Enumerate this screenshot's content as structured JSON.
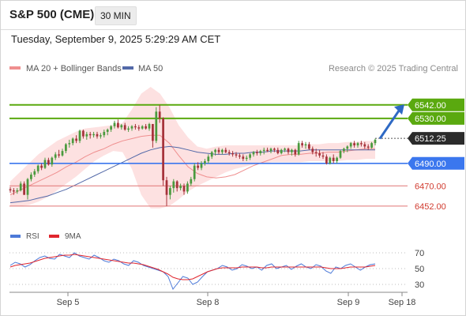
{
  "header": {
    "title": "S&P 500 (CME)",
    "timeframe": "30 MIN"
  },
  "timestamp": "Tuesday, September 9, 2025 5:29:29 AM CET",
  "legend": {
    "ma20_label": "MA 20 + Bollinger Bands",
    "ma50_label": "MA 50",
    "copyright": "Research © 2025 Trading Central"
  },
  "colors": {
    "bull": "#4a9a3e",
    "bear": "#a6323a",
    "ma20": "#ef8f8f",
    "ma50": "#5369a8",
    "band_fill": "#fddcdc",
    "resistance": "#5aa90f",
    "support_blue": "#3b77ee",
    "support_red": "#e07474",
    "rsi": "#4d7ad8",
    "rsi_ma": "#e0262e",
    "arrow": "#2e69c4"
  },
  "chart_data": [
    {
      "type": "candlestick",
      "price_range": [
        6440,
        6565
      ],
      "x_ticks": [
        "Sep 5",
        "Sep 8",
        "Sep 9",
        "Sep 18"
      ],
      "last_price": "6512.25",
      "levels": [
        {
          "value": 6542,
          "label": "6542.00",
          "role": "resistance",
          "style": "box"
        },
        {
          "value": 6530,
          "label": "6530.00",
          "role": "resistance",
          "style": "box"
        },
        {
          "value": 6512.25,
          "label": "6512.25",
          "role": "last",
          "style": "box-dark"
        },
        {
          "value": 6490,
          "label": "6490.00",
          "role": "support-blue",
          "style": "box"
        },
        {
          "value": 6470,
          "label": "6470.00",
          "role": "support-red",
          "style": "text"
        },
        {
          "value": 6452,
          "label": "6452.00",
          "role": "support-red",
          "style": "text"
        }
      ],
      "candles": [
        [
          6467,
          6469,
          6464,
          6466
        ],
        [
          6466,
          6468,
          6462,
          6465
        ],
        [
          6465,
          6468,
          6463,
          6466
        ],
        [
          6466,
          6474,
          6465,
          6472
        ],
        [
          6472,
          6474,
          6462,
          6462
        ],
        [
          6462,
          6477,
          6458,
          6476
        ],
        [
          6476,
          6482,
          6474,
          6480
        ],
        [
          6480,
          6485,
          6478,
          6483
        ],
        [
          6483,
          6489,
          6481,
          6488
        ],
        [
          6488,
          6490,
          6484,
          6486
        ],
        [
          6486,
          6495,
          6485,
          6493
        ],
        [
          6493,
          6495,
          6488,
          6489
        ],
        [
          6489,
          6496,
          6487,
          6495
        ],
        [
          6495,
          6500,
          6493,
          6498
        ],
        [
          6498,
          6502,
          6495,
          6497
        ],
        [
          6497,
          6503,
          6496,
          6501
        ],
        [
          6501,
          6508,
          6499,
          6507
        ],
        [
          6507,
          6511,
          6504,
          6508
        ],
        [
          6508,
          6513,
          6506,
          6512
        ],
        [
          6512,
          6515,
          6508,
          6510
        ],
        [
          6510,
          6520,
          6508,
          6519
        ],
        [
          6519,
          6520,
          6512,
          6514
        ],
        [
          6514,
          6518,
          6511,
          6516
        ],
        [
          6516,
          6518,
          6512,
          6515
        ],
        [
          6515,
          6518,
          6513,
          6516
        ],
        [
          6516,
          6518,
          6512,
          6514
        ],
        [
          6514,
          6517,
          6512,
          6515
        ],
        [
          6515,
          6520,
          6513,
          6518
        ],
        [
          6518,
          6521,
          6515,
          6520
        ],
        [
          6520,
          6524,
          6518,
          6523
        ],
        [
          6523,
          6528,
          6521,
          6526
        ],
        [
          6526,
          6529,
          6521,
          6522
        ],
        [
          6522,
          6525,
          6520,
          6524
        ],
        [
          6524,
          6526,
          6519,
          6520
        ],
        [
          6520,
          6523,
          6518,
          6521
        ],
        [
          6521,
          6524,
          6519,
          6523
        ],
        [
          6523,
          6525,
          6520,
          6522
        ],
        [
          6522,
          6524,
          6519,
          6521
        ],
        [
          6521,
          6524,
          6520,
          6523
        ],
        [
          6523,
          6525,
          6520,
          6521
        ],
        [
          6521,
          6526,
          6519,
          6525
        ],
        [
          6525,
          6525,
          6504,
          6510
        ],
        [
          6510,
          6540,
          6508,
          6536
        ],
        [
          6536,
          6542,
          6526,
          6530
        ],
        [
          6530,
          6531,
          6470,
          6475
        ],
        [
          6475,
          6478,
          6452,
          6462
        ],
        [
          6462,
          6470,
          6458,
          6468
        ],
        [
          6468,
          6476,
          6464,
          6474
        ],
        [
          6474,
          6475,
          6465,
          6468
        ],
        [
          6468,
          6472,
          6466,
          6470
        ],
        [
          6470,
          6472,
          6462,
          6465
        ],
        [
          6465,
          6474,
          6463,
          6472
        ],
        [
          6472,
          6478,
          6470,
          6476
        ],
        [
          6476,
          6490,
          6474,
          6488
        ],
        [
          6488,
          6491,
          6484,
          6486
        ],
        [
          6486,
          6492,
          6484,
          6490
        ],
        [
          6490,
          6494,
          6488,
          6492
        ],
        [
          6492,
          6498,
          6490,
          6496
        ],
        [
          6496,
          6501,
          6494,
          6500
        ],
        [
          6500,
          6503,
          6497,
          6502
        ],
        [
          6502,
          6504,
          6498,
          6500
        ],
        [
          6500,
          6503,
          6498,
          6502
        ],
        [
          6502,
          6504,
          6499,
          6500
        ],
        [
          6500,
          6502,
          6497,
          6499
        ],
        [
          6499,
          6501,
          6496,
          6498
        ],
        [
          6498,
          6500,
          6495,
          6497
        ],
        [
          6497,
          6499,
          6494,
          6496
        ],
        [
          6496,
          6498,
          6492,
          6494
        ],
        [
          6494,
          6497,
          6492,
          6495
        ],
        [
          6495,
          6499,
          6493,
          6498
        ],
        [
          6498,
          6501,
          6496,
          6500
        ],
        [
          6500,
          6502,
          6497,
          6499
        ],
        [
          6499,
          6502,
          6497,
          6501
        ],
        [
          6501,
          6504,
          6498,
          6502
        ],
        [
          6502,
          6504,
          6500,
          6501
        ],
        [
          6501,
          6504,
          6499,
          6503
        ],
        [
          6503,
          6504,
          6500,
          6502
        ],
        [
          6502,
          6504,
          6498,
          6499
        ],
        [
          6499,
          6503,
          6498,
          6502
        ],
        [
          6502,
          6504,
          6500,
          6503
        ],
        [
          6503,
          6504,
          6498,
          6500
        ],
        [
          6500,
          6503,
          6497,
          6502
        ],
        [
          6502,
          6503,
          6496,
          6498
        ],
        [
          6498,
          6510,
          6497,
          6508
        ],
        [
          6508,
          6510,
          6504,
          6506
        ],
        [
          6506,
          6509,
          6503,
          6507
        ],
        [
          6507,
          6509,
          6502,
          6503
        ],
        [
          6503,
          6505,
          6498,
          6500
        ],
        [
          6500,
          6503,
          6496,
          6499
        ],
        [
          6499,
          6502,
          6495,
          6497
        ],
        [
          6497,
          6500,
          6494,
          6496
        ],
        [
          6496,
          6498,
          6489,
          6490
        ],
        [
          6490,
          6496,
          6489,
          6495
        ],
        [
          6495,
          6498,
          6490,
          6492
        ],
        [
          6492,
          6496,
          6490,
          6495
        ],
        [
          6495,
          6502,
          6494,
          6501
        ],
        [
          6501,
          6504,
          6499,
          6503
        ],
        [
          6503,
          6506,
          6500,
          6505
        ],
        [
          6505,
          6509,
          6503,
          6508
        ],
        [
          6508,
          6510,
          6504,
          6506
        ],
        [
          6506,
          6509,
          6504,
          6508
        ],
        [
          6508,
          6510,
          6505,
          6507
        ],
        [
          6507,
          6509,
          6503,
          6505
        ],
        [
          6505,
          6507,
          6502,
          6504
        ],
        [
          6504,
          6509,
          6503,
          6508
        ],
        [
          6508,
          6512,
          6506,
          6511
        ]
      ],
      "ma20": [
        6462,
        6466,
        6470,
        6474,
        6478,
        6482,
        6487,
        6491,
        6496,
        6500,
        6503,
        6507,
        6510,
        6512,
        6514,
        6515,
        6515,
        6508,
        6497,
        6487,
        6481,
        6478,
        6477,
        6478,
        6480,
        6484,
        6488,
        6491,
        6494,
        6497,
        6498,
        6498,
        6499,
        6499,
        6500,
        6500,
        6501,
        6502,
        6503,
        6503
      ],
      "ma50": [
        6455,
        6456,
        6457,
        6459,
        6461,
        6464,
        6467,
        6471,
        6475,
        6479,
        6483,
        6487,
        6491,
        6495,
        6499,
        6502,
        6504,
        6505,
        6504,
        6502,
        6500,
        6499,
        6498,
        6498,
        6499,
        6499,
        6500,
        6500,
        6501,
        6501,
        6501,
        6501,
        6502,
        6502,
        6502,
        6502,
        6502,
        6502,
        6502,
        6502
      ],
      "bollinger_upper": [
        6474,
        6482,
        6490,
        6498,
        6504,
        6510,
        6514,
        6518,
        6521,
        6522,
        6523,
        6524,
        6526,
        6538,
        6552,
        6558,
        6552,
        6540,
        6524,
        6513,
        6505,
        6503,
        6505,
        6506,
        6506,
        6506,
        6506,
        6506,
        6506,
        6506,
        6506,
        6506,
        6507,
        6507,
        6508,
        6508,
        6509,
        6509,
        6510,
        6510
      ],
      "bollinger_lower": [
        6452,
        6452,
        6453,
        6456,
        6460,
        6466,
        6472,
        6478,
        6485,
        6492,
        6497,
        6501,
        6500,
        6485,
        6462,
        6450,
        6450,
        6452,
        6458,
        6465,
        6470,
        6474,
        6478,
        6482,
        6485,
        6487,
        6489,
        6490,
        6491,
        6491,
        6491,
        6491,
        6492,
        6492,
        6492,
        6492,
        6493,
        6493,
        6494,
        6494
      ]
    },
    {
      "type": "line",
      "name": "RSI",
      "ylim": [
        20,
        80
      ],
      "y_ticks": [
        70,
        50,
        30
      ],
      "series": [
        {
          "name": "RSI",
          "values": [
            54,
            58,
            56,
            52,
            55,
            60,
            64,
            66,
            63,
            62,
            68,
            66,
            64,
            70,
            66,
            64,
            62,
            67,
            64,
            60,
            58,
            62,
            60,
            56,
            54,
            60,
            58,
            54,
            52,
            50,
            48,
            46,
            40,
            24,
            32,
            40,
            38,
            30,
            33,
            40,
            46,
            48,
            50,
            54,
            52,
            48,
            50,
            55,
            53,
            50,
            52,
            48,
            54,
            56,
            50,
            52,
            54,
            49,
            53,
            56,
            52,
            50,
            55,
            53,
            47,
            44,
            52,
            50,
            54,
            56,
            52,
            48,
            52,
            55,
            56
          ]
        },
        {
          "name": "9MA",
          "values": [
            52,
            54,
            55,
            56,
            57,
            59,
            61,
            63,
            64,
            65,
            66,
            67,
            67,
            68,
            67,
            66,
            65,
            64,
            63,
            62,
            61,
            60,
            59,
            58,
            57,
            57,
            56,
            55,
            53,
            51,
            49,
            46,
            43,
            39,
            37,
            36,
            36,
            37,
            40,
            43,
            46,
            48,
            50,
            51,
            51,
            51,
            51,
            52,
            52,
            52,
            52,
            51,
            51,
            52,
            52,
            52,
            52,
            52,
            52,
            52,
            52,
            52,
            52,
            52,
            51,
            50,
            50,
            50,
            51,
            52,
            52,
            52,
            52,
            53,
            54
          ]
        }
      ]
    }
  ]
}
